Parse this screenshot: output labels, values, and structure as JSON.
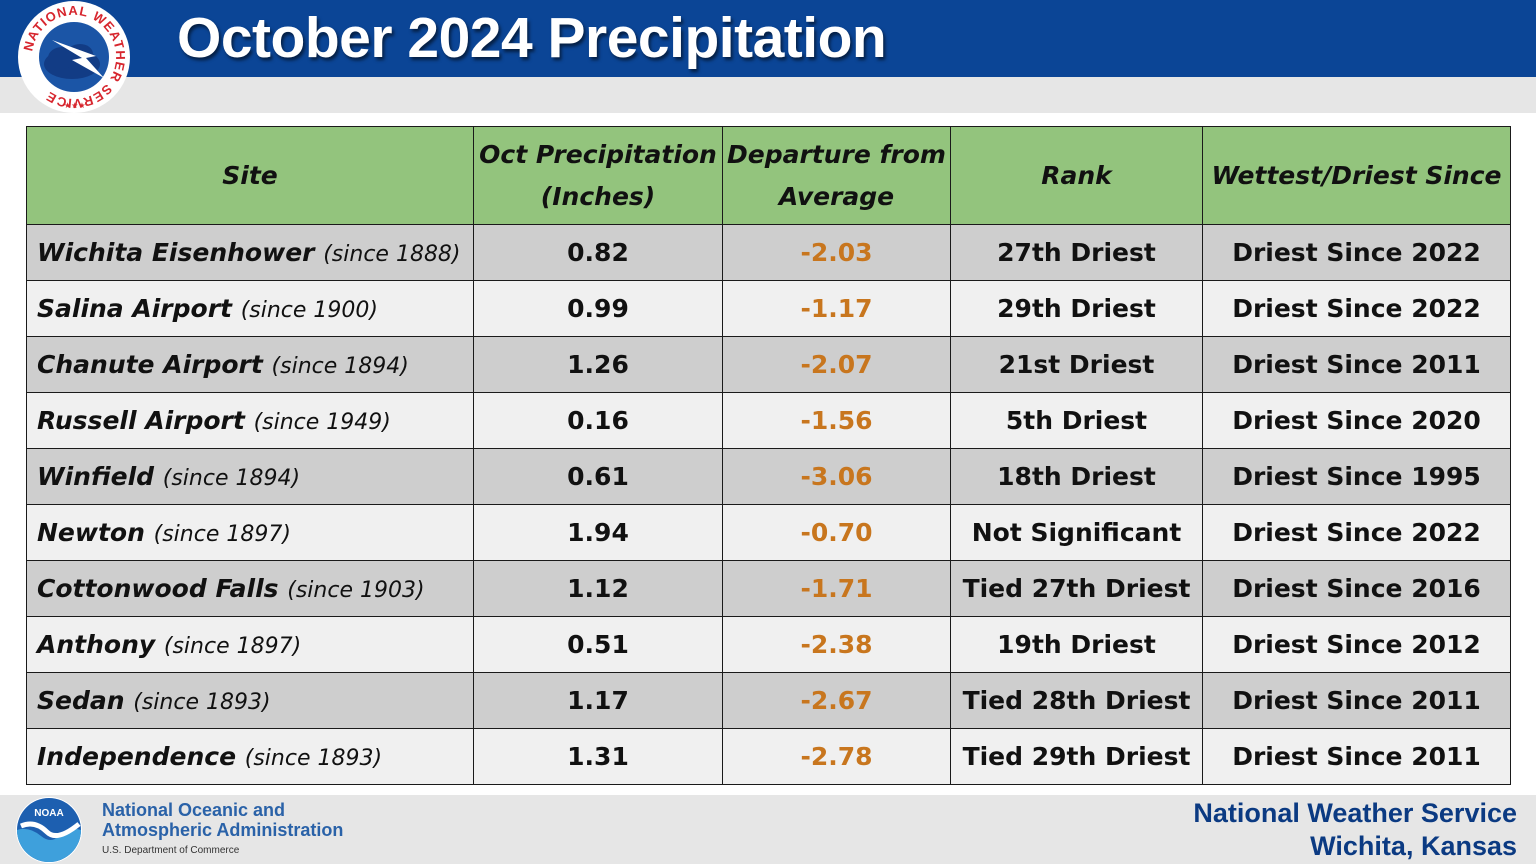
{
  "header": {
    "title": "October 2024 Precipitation",
    "logo_name": "nws-logo",
    "logo_text": "NATIONAL WEATHER SERVICE"
  },
  "colors": {
    "header_blue": "#0b4596",
    "header_green": "#93c47d",
    "departure_orange": "#c8761e",
    "row_dark": "#cecece",
    "row_light": "#f0f0f0"
  },
  "table": {
    "columns": [
      {
        "line1": "Site",
        "line2": ""
      },
      {
        "line1": "Oct Precipitation",
        "line2": "(Inches)"
      },
      {
        "line1": "Departure from",
        "line2": "Average"
      },
      {
        "line1": "Rank",
        "line2": ""
      },
      {
        "line1": "Wettest/Driest Since",
        "line2": ""
      }
    ],
    "rows": [
      {
        "site": "Wichita Eisenhower",
        "since": "(since 1888)",
        "precip": "0.82",
        "departure": "-2.03",
        "rank": "27th Driest",
        "since_text": "Driest Since 2022"
      },
      {
        "site": "Salina Airport",
        "since": "(since 1900)",
        "precip": "0.99",
        "departure": "-1.17",
        "rank": "29th Driest",
        "since_text": "Driest Since 2022"
      },
      {
        "site": "Chanute Airport",
        "since": "(since 1894)",
        "precip": "1.26",
        "departure": "-2.07",
        "rank": "21st Driest",
        "since_text": "Driest Since 2011"
      },
      {
        "site": "Russell Airport",
        "since": "(since 1949)",
        "precip": "0.16",
        "departure": "-1.56",
        "rank": "5th Driest",
        "since_text": "Driest Since 2020"
      },
      {
        "site": "Winfield",
        "since": "(since 1894)",
        "precip": "0.61",
        "departure": "-3.06",
        "rank": "18th Driest",
        "since_text": "Driest Since 1995"
      },
      {
        "site": "Newton",
        "since": "(since 1897)",
        "precip": "1.94",
        "departure": "-0.70",
        "rank": "Not Significant",
        "since_text": "Driest Since 2022"
      },
      {
        "site": "Cottonwood Falls",
        "since": "(since 1903)",
        "precip": "1.12",
        "departure": "-1.71",
        "rank": "Tied 27th Driest",
        "since_text": "Driest Since 2016"
      },
      {
        "site": "Anthony",
        "since": "(since 1897)",
        "precip": "0.51",
        "departure": "-2.38",
        "rank": "19th Driest",
        "since_text": "Driest Since 2012"
      },
      {
        "site": "Sedan",
        "since": "(since 1893)",
        "precip": "1.17",
        "departure": "-2.67",
        "rank": "Tied 28th Driest",
        "since_text": "Driest Since 2011"
      },
      {
        "site": "Independence",
        "since": "(since 1893)",
        "precip": "1.31",
        "departure": "-2.78",
        "rank": "Tied 29th Driest",
        "since_text": "Driest Since 2011"
      }
    ]
  },
  "footer": {
    "noaa_logo_text": "NOAA",
    "noaa_line1": "National Oceanic and",
    "noaa_line2": "Atmospheric Administration",
    "noaa_dept": "U.S. Department of Commerce",
    "office_line1": "National Weather Service",
    "office_line2": "Wichita, Kansas"
  }
}
